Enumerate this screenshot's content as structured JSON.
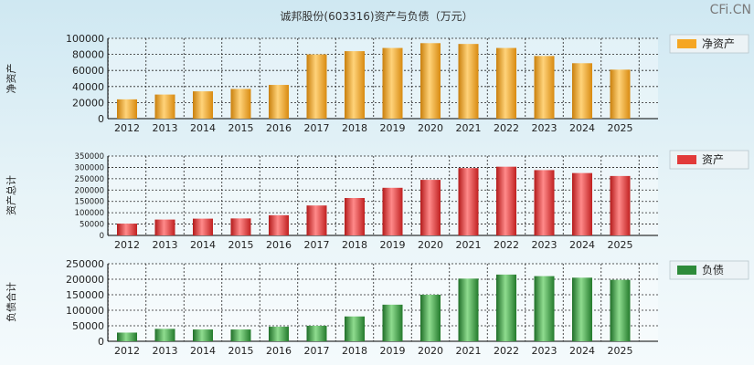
{
  "page": {
    "title": "诚邦股份(603316)资产与负债（万元）",
    "watermark": "CFi.CN"
  },
  "chart_data": [
    {
      "type": "bar",
      "id": "net-assets",
      "ylabel": "净资产",
      "legend": "净资产",
      "color": "#f5a623",
      "categories": [
        "2012",
        "2013",
        "2014",
        "2015",
        "2016",
        "2017",
        "2018",
        "2019",
        "2020",
        "2021",
        "2022",
        "2023",
        "2024",
        "2025"
      ],
      "values": [
        24000,
        30000,
        34000,
        37000,
        42000,
        80000,
        84000,
        88000,
        94000,
        93000,
        88000,
        78000,
        69000,
        61000
      ],
      "ylim": [
        0,
        100000
      ],
      "yticks": [
        0,
        20000,
        40000,
        60000,
        80000,
        100000
      ],
      "legend_position": "top-right",
      "grid": true
    },
    {
      "type": "bar",
      "id": "total-assets",
      "ylabel": "资产总计",
      "legend": "资产",
      "color": "#e23a3a",
      "categories": [
        "2012",
        "2013",
        "2014",
        "2015",
        "2016",
        "2017",
        "2018",
        "2019",
        "2020",
        "2021",
        "2022",
        "2023",
        "2024",
        "2025"
      ],
      "values": [
        52000,
        70000,
        74000,
        75000,
        89000,
        132000,
        165000,
        210000,
        245000,
        297000,
        303000,
        288000,
        275000,
        262000
      ],
      "ylim": [
        0,
        350000
      ],
      "yticks": [
        0,
        50000,
        100000,
        150000,
        200000,
        250000,
        300000,
        350000
      ],
      "legend_position": "top-right",
      "grid": true
    },
    {
      "type": "bar",
      "id": "total-liabilities",
      "ylabel": "负债合计",
      "legend": "负债",
      "color": "#2e8b3a",
      "categories": [
        "2012",
        "2013",
        "2014",
        "2015",
        "2016",
        "2017",
        "2018",
        "2019",
        "2020",
        "2021",
        "2022",
        "2023",
        "2024",
        "2025"
      ],
      "values": [
        28000,
        40000,
        38000,
        38000,
        47000,
        50000,
        80000,
        118000,
        150000,
        202000,
        215000,
        210000,
        205000,
        198000
      ],
      "ylim": [
        0,
        250000
      ],
      "yticks": [
        0,
        50000,
        100000,
        150000,
        200000,
        250000
      ],
      "legend_position": "top-right",
      "grid": true
    }
  ]
}
